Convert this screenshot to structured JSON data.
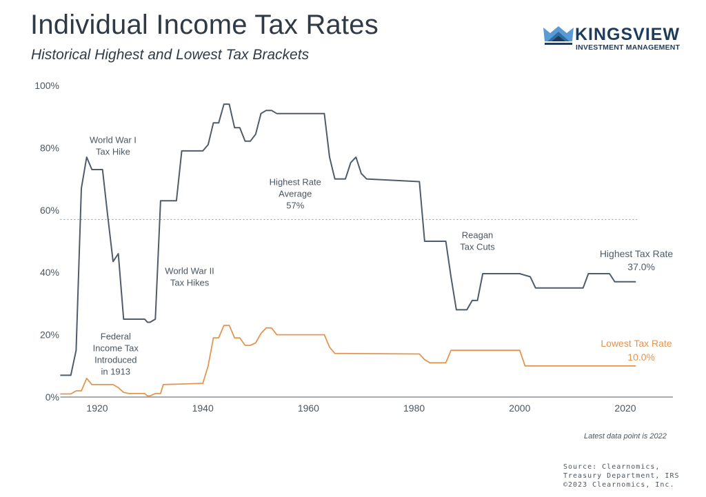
{
  "header": {
    "title": "Individual Income Tax Rates",
    "subtitle": "Historical Highest and Lowest Tax Brackets"
  },
  "logo": {
    "name": "KINGSVIEW",
    "tagline": "INVESTMENT MANAGEMENT",
    "icon": "crown-icon",
    "colors": {
      "dark": "#1f3b5c",
      "mid": "#2e6da4",
      "light": "#5b9bd5"
    }
  },
  "footer": {
    "note": "Latest data point is 2022",
    "source_lines": [
      "Source: Clearnomics,",
      "Treasury Department, IRS",
      "©2023 Clearnomics, Inc."
    ]
  },
  "chart_data": {
    "type": "line",
    "title": "Individual Income Tax Rates",
    "subtitle": "Historical Highest and Lowest Tax Brackets",
    "xlabel": "",
    "ylabel": "",
    "xlim": [
      1913,
      2028
    ],
    "ylim": [
      0,
      100
    ],
    "x_ticks": [
      1920,
      1940,
      1960,
      1980,
      2000,
      2020
    ],
    "x_tick_labels": [
      "1920",
      "1940",
      "1960",
      "1980",
      "2000",
      "2020"
    ],
    "y_ticks": [
      0,
      20,
      40,
      60,
      80,
      100
    ],
    "y_tick_labels": [
      "0%",
      "20%",
      "40%",
      "60%",
      "80%",
      "100%"
    ],
    "grid": false,
    "legend": "inline-right",
    "colors": {
      "highest": "#4e5b68",
      "lowest": "#e39550",
      "average_line": "#8a939c",
      "axis": "#8a8f95"
    },
    "series": [
      {
        "name": "Highest Tax Rate",
        "label": "Highest Tax Rate",
        "end_label": "37.0%",
        "points": [
          [
            1913,
            7
          ],
          [
            1915,
            7
          ],
          [
            1916,
            15
          ],
          [
            1917,
            67
          ],
          [
            1918,
            77
          ],
          [
            1919,
            73
          ],
          [
            1921,
            73
          ],
          [
            1922,
            58
          ],
          [
            1923,
            43.5
          ],
          [
            1924,
            46
          ],
          [
            1925,
            25
          ],
          [
            1929,
            25
          ],
          [
            1929.5,
            24
          ],
          [
            1930,
            24
          ],
          [
            1931,
            25
          ],
          [
            1932,
            63
          ],
          [
            1935,
            63
          ],
          [
            1936,
            79
          ],
          [
            1940,
            79
          ],
          [
            1941,
            81
          ],
          [
            1942,
            88
          ],
          [
            1943,
            88
          ],
          [
            1944,
            94
          ],
          [
            1945,
            94
          ],
          [
            1946,
            86.45
          ],
          [
            1947,
            86.45
          ],
          [
            1948,
            82.13
          ],
          [
            1949,
            82.13
          ],
          [
            1950,
            84.36
          ],
          [
            1951,
            91
          ],
          [
            1952,
            92
          ],
          [
            1953,
            92
          ],
          [
            1954,
            91
          ],
          [
            1963,
            91
          ],
          [
            1964,
            77
          ],
          [
            1965,
            70
          ],
          [
            1967,
            70
          ],
          [
            1968,
            75.25
          ],
          [
            1969,
            77
          ],
          [
            1970,
            71.75
          ],
          [
            1971,
            70
          ],
          [
            1981,
            69.13
          ],
          [
            1982,
            50
          ],
          [
            1986,
            50
          ],
          [
            1987,
            38.5
          ],
          [
            1988,
            28
          ],
          [
            1990,
            28
          ],
          [
            1991,
            31
          ],
          [
            1992,
            31
          ],
          [
            1993,
            39.6
          ],
          [
            2000,
            39.6
          ],
          [
            2001,
            39.1
          ],
          [
            2002,
            38.6
          ],
          [
            2003,
            35
          ],
          [
            2012,
            35
          ],
          [
            2013,
            39.6
          ],
          [
            2017,
            39.6
          ],
          [
            2018,
            37
          ],
          [
            2022,
            37
          ]
        ]
      },
      {
        "name": "Lowest Tax Rate",
        "label": "Lowest Tax Rate",
        "end_label": "10.0%",
        "points": [
          [
            1913,
            1
          ],
          [
            1915,
            1
          ],
          [
            1916,
            2
          ],
          [
            1917,
            2
          ],
          [
            1918,
            6
          ],
          [
            1919,
            4
          ],
          [
            1923,
            4
          ],
          [
            1924,
            3
          ],
          [
            1925,
            1.5
          ],
          [
            1926,
            1.125
          ],
          [
            1929,
            1.125
          ],
          [
            1929.5,
            0.375
          ],
          [
            1930,
            0.375
          ],
          [
            1931,
            1.125
          ],
          [
            1932,
            1.125
          ],
          [
            1932.5,
            4
          ],
          [
            1940,
            4.4
          ],
          [
            1941,
            10
          ],
          [
            1942,
            19
          ],
          [
            1943,
            19
          ],
          [
            1944,
            23
          ],
          [
            1945,
            23
          ],
          [
            1946,
            19
          ],
          [
            1947,
            19
          ],
          [
            1948,
            16.6
          ],
          [
            1949,
            16.6
          ],
          [
            1950,
            17.4
          ],
          [
            1951,
            20.4
          ],
          [
            1952,
            22.2
          ],
          [
            1953,
            22.2
          ],
          [
            1954,
            20
          ],
          [
            1963,
            20
          ],
          [
            1964,
            16
          ],
          [
            1965,
            14
          ],
          [
            1981,
            13.825
          ],
          [
            1982,
            12
          ],
          [
            1983,
            11
          ],
          [
            1986,
            11
          ],
          [
            1987,
            15
          ],
          [
            2000,
            15
          ],
          [
            2001,
            10
          ],
          [
            2022,
            10
          ]
        ]
      }
    ],
    "reference_lines": [
      {
        "name": "Highest Rate Average",
        "value": 57,
        "style": "dotted"
      }
    ],
    "annotations": [
      {
        "name": "world-war-1",
        "lines": [
          "World War I",
          "Tax Hike"
        ],
        "x": 1923,
        "y": 81.5
      },
      {
        "name": "world-war-2",
        "lines": [
          "World War II",
          "Tax Hikes"
        ],
        "x": 1937.5,
        "y": 39.5
      },
      {
        "name": "highest-avg",
        "lines": [
          "Highest Rate",
          "Average",
          "57%"
        ],
        "x": 1957.5,
        "y": 68
      },
      {
        "name": "reagan",
        "lines": [
          "Reagan",
          "Tax Cuts"
        ],
        "x": 1992,
        "y": 51
      },
      {
        "name": "federal-income-tax",
        "lines": [
          "Federal",
          "Income Tax",
          "Introduced",
          "in 1913"
        ],
        "x": 1923.5,
        "y": 18.5
      }
    ]
  }
}
